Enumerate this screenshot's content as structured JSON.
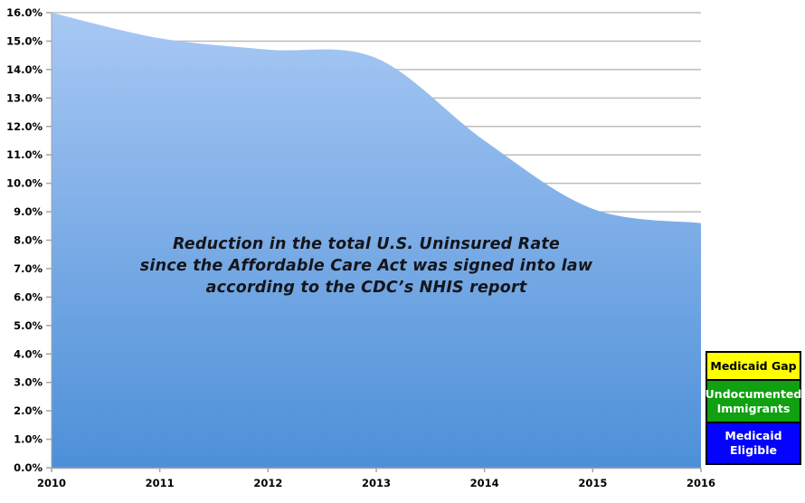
{
  "chart_data": {
    "type": "area",
    "title_lines": [
      "Reduction in the total U.S. Uninsured Rate",
      "since the Affordable Care Act was signed into law",
      "according to the CDC’s NHIS report"
    ],
    "x": [
      2010,
      2011,
      2012,
      2013,
      2014,
      2015,
      2016
    ],
    "x_tick_labels": [
      "2010",
      "2011",
      "2012",
      "2013",
      "2014",
      "2015",
      "2016"
    ],
    "series": [
      {
        "name": "Total U.S. Uninsured Rate (%)",
        "values": [
          16.0,
          15.1,
          14.7,
          14.4,
          11.5,
          9.1,
          8.6
        ]
      }
    ],
    "ylim": [
      0,
      16
    ],
    "y_tick_step": 1,
    "y_tick_labels": [
      "0.0%",
      "1.0%",
      "2.0%",
      "3.0%",
      "4.0%",
      "5.0%",
      "6.0%",
      "7.0%",
      "8.0%",
      "9.0%",
      "10.0%",
      "11.0%",
      "12.0%",
      "13.0%",
      "14.0%",
      "15.0%",
      "16.0%"
    ],
    "grid": true,
    "line_smoothing": true,
    "legend": {
      "position": "bottom-right",
      "items": [
        {
          "label": "Medicaid Gap",
          "bg": "#FFFF00",
          "text_color": "#000000"
        },
        {
          "label": "Undocumented Immigrants",
          "bg": "#10A010",
          "text_color": "#FFFFFF"
        },
        {
          "label": "Medicaid Eligible",
          "bg": "#0404FE",
          "text_color": "#FFFFFF"
        }
      ]
    },
    "colors": {
      "area_top": "#A8C8F4",
      "area_bottom": "#4D90D8",
      "gridline": "#BDBDBD",
      "axis": "#A6A6A6",
      "label": "#000000",
      "title": "#15151b"
    }
  }
}
